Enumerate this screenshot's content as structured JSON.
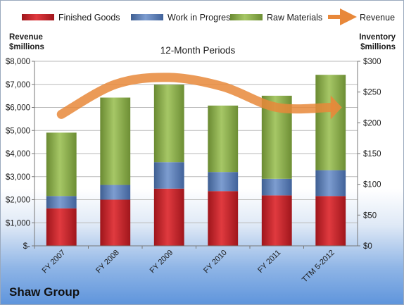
{
  "company_name": "Shaw Group",
  "chart_data": {
    "type": "bar",
    "stacked": true,
    "title": "12-Month Periods",
    "categories": [
      "FY 2007",
      "FY 2008",
      "FY 2009",
      "FY 2010",
      "FY 2011",
      "TTM 5-2012"
    ],
    "left_axis": {
      "label_line1": "Revenue",
      "label_line2": "$millions",
      "ylim": [
        0,
        8000
      ],
      "tick_labels": [
        "$-",
        "$1,000",
        "$2,000",
        "$3,000",
        "$4,000",
        "$5,000",
        "$6,000",
        "$7,000",
        "$8,000"
      ]
    },
    "right_axis": {
      "label_line1": "Inventory",
      "label_line2": "$millions",
      "ylim": [
        0,
        300
      ],
      "tick_labels": [
        "$0",
        "$50",
        "$100",
        "$150",
        "$200",
        "$250",
        "$300"
      ]
    },
    "series": [
      {
        "name": "Finished Goods",
        "axis": "right",
        "color": "#c0252b",
        "values": [
          61,
          75,
          93,
          89,
          82,
          81
        ]
      },
      {
        "name": "Work in Progress",
        "axis": "right",
        "color": "#5a7eb5",
        "values": [
          20,
          24,
          43,
          31,
          27,
          42
        ]
      },
      {
        "name": "Raw Materials",
        "axis": "right",
        "color": "#8db04c",
        "values": [
          103,
          142,
          126,
          108,
          135,
          155
        ]
      },
      {
        "name": "Revenue",
        "axis": "left",
        "type": "line",
        "color": "#e8883a",
        "values": [
          5700,
          7000,
          7300,
          6900,
          6000,
          6000
        ]
      }
    ],
    "legend": {
      "position": "top",
      "entries": [
        "Finished Goods",
        "Work in Progress",
        "Raw Materials",
        "Revenue"
      ]
    },
    "grid": true
  }
}
